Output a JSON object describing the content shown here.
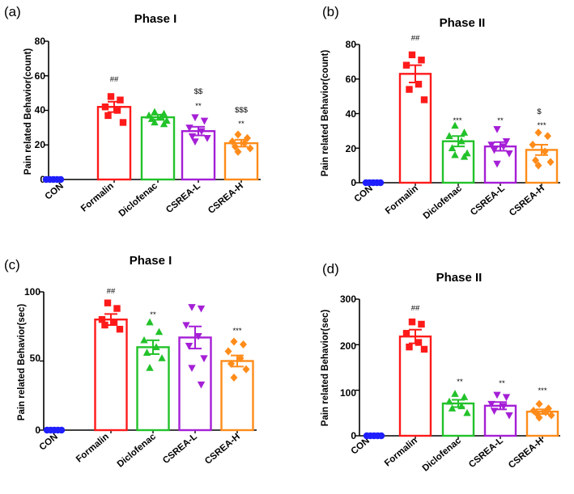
{
  "chart_data": [
    {
      "id": "a",
      "panel_label": "(a)",
      "type": "bar",
      "title": "Phase I",
      "ylabel": "Pain related Behavior(count)",
      "ylim": [
        0,
        80
      ],
      "yticks": [
        0,
        20,
        40,
        60,
        80
      ],
      "tick_labels": [
        "0",
        "20",
        "40",
        "60",
        "80"
      ],
      "categories": [
        "CON",
        "Formalin",
        "Diclofenac",
        "CSREA-L",
        "CSREA-H"
      ],
      "values": [
        0,
        42,
        36,
        28,
        21
      ],
      "errors": [
        0,
        3,
        1.5,
        2.5,
        2
      ],
      "points": [
        [
          0,
          0,
          0,
          0,
          0
        ],
        [
          48,
          46,
          42,
          40,
          37,
          33
        ],
        [
          39,
          38,
          37,
          36,
          35,
          34,
          33,
          32
        ],
        [
          36,
          34,
          30,
          28,
          25,
          24,
          22
        ],
        [
          26,
          24,
          22,
          21,
          19,
          18,
          16
        ]
      ],
      "markers": [
        "circle",
        "square",
        "triangle",
        "triangle-down",
        "diamond"
      ],
      "colors": [
        "#1f1fff",
        "#ff1a1a",
        "#22c22a",
        "#a51fd6",
        "#ff8c1a"
      ],
      "annotations": [
        [
          "",
          "",
          ""
        ],
        [
          "",
          "",
          "##"
        ],
        [
          "",
          "",
          ""
        ],
        [
          "",
          "$$",
          "**"
        ],
        [
          "",
          "$$$",
          "**"
        ]
      ]
    },
    {
      "id": "b",
      "panel_label": "(b)",
      "type": "bar",
      "title": "Phase II",
      "ylabel": "Pain related Behavior(count)",
      "ylim": [
        0,
        80
      ],
      "yticks": [
        0,
        20,
        40,
        60,
        80
      ],
      "tick_labels": [
        "0",
        "20",
        "40",
        "60",
        "80"
      ],
      "categories": [
        "CON",
        "Formalin",
        "Diclofenac",
        "CSREA-L",
        "CSREA-H"
      ],
      "values": [
        0,
        63,
        24,
        21,
        19
      ],
      "errors": [
        0,
        5,
        3,
        2.5,
        3
      ],
      "points": [
        [
          0,
          0,
          0,
          0,
          0
        ],
        [
          74,
          71,
          68,
          57,
          54,
          48
        ],
        [
          33,
          29,
          27,
          24,
          20,
          17,
          16,
          15
        ],
        [
          31,
          24,
          22,
          21,
          19,
          17,
          11
        ],
        [
          29,
          27,
          22,
          18,
          13,
          12,
          10
        ]
      ],
      "markers": [
        "circle",
        "square",
        "triangle",
        "triangle-down",
        "diamond"
      ],
      "colors": [
        "#1f1fff",
        "#ff1a1a",
        "#22c22a",
        "#a51fd6",
        "#ff8c1a"
      ],
      "annotations": [
        [
          "",
          "",
          ""
        ],
        [
          "",
          "",
          "##"
        ],
        [
          "",
          "",
          "***"
        ],
        [
          "",
          "",
          "**"
        ],
        [
          "",
          "$",
          "***"
        ]
      ]
    },
    {
      "id": "c",
      "panel_label": "(c)",
      "type": "bar",
      "title": "Phase I",
      "ylabel": "Pain related Behavior(sec)",
      "ylim": [
        0,
        100
      ],
      "yticks": [
        0,
        50,
        100
      ],
      "tick_labels": [
        "0",
        "50",
        "100"
      ],
      "categories": [
        "CON",
        "Formalin",
        "Diclofenac",
        "CSREA-L",
        "CSREA-H"
      ],
      "values": [
        0,
        80,
        60,
        67,
        50
      ],
      "errors": [
        0,
        4,
        5,
        8,
        4
      ],
      "points": [
        [
          0,
          0,
          0,
          0,
          0
        ],
        [
          92,
          88,
          80,
          78,
          76,
          73
        ],
        [
          78,
          71,
          65,
          60,
          56,
          52,
          45
        ],
        [
          89,
          88,
          76,
          68,
          61,
          52,
          45,
          33
        ],
        [
          64,
          62,
          57,
          52,
          48,
          44,
          38
        ]
      ],
      "markers": [
        "circle",
        "square",
        "triangle",
        "triangle-down",
        "diamond"
      ],
      "colors": [
        "#1f1fff",
        "#ff1a1a",
        "#22c22a",
        "#a51fd6",
        "#ff8c1a"
      ],
      "annotations": [
        [
          "",
          "",
          ""
        ],
        [
          "",
          "",
          "##"
        ],
        [
          "",
          "",
          "**"
        ],
        [
          "",
          "",
          ""
        ],
        [
          "",
          "",
          "***"
        ]
      ]
    },
    {
      "id": "d",
      "panel_label": "(d)",
      "type": "bar",
      "title": "Phase II",
      "ylabel": "Pain related Behavior(sec)",
      "ylim": [
        0,
        300
      ],
      "yticks": [
        0,
        100,
        200,
        300
      ],
      "tick_labels": [
        "0",
        "100",
        "200",
        "300"
      ],
      "categories": [
        "CON",
        "Formalin",
        "Diclofenac",
        "CSREA-L",
        "CSREA-H"
      ],
      "values": [
        0,
        218,
        71,
        66,
        53
      ],
      "errors": [
        0,
        15,
        8,
        8,
        5
      ],
      "points": [
        [
          0,
          0,
          0,
          0,
          0
        ],
        [
          250,
          245,
          225,
          205,
          195,
          190
        ],
        [
          92,
          85,
          75,
          65,
          60,
          50
        ],
        [
          90,
          85,
          70,
          65,
          55,
          45
        ],
        [
          70,
          60,
          55,
          52,
          50,
          45,
          40
        ]
      ],
      "markers": [
        "circle",
        "square",
        "triangle",
        "triangle-down",
        "diamond"
      ],
      "colors": [
        "#1f1fff",
        "#ff1a1a",
        "#22c22a",
        "#a51fd6",
        "#ff8c1a"
      ],
      "annotations": [
        [
          "",
          "",
          ""
        ],
        [
          "",
          "",
          "##"
        ],
        [
          "",
          "",
          "**"
        ],
        [
          "",
          "",
          "**"
        ],
        [
          "",
          "",
          "***"
        ]
      ]
    }
  ]
}
